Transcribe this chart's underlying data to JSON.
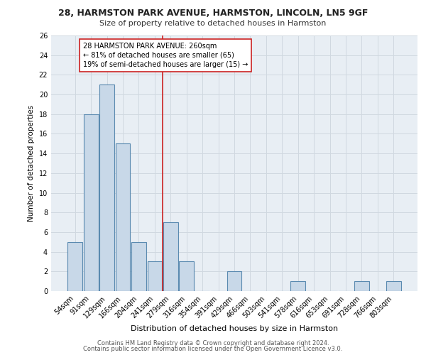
{
  "title1": "28, HARMSTON PARK AVENUE, HARMSTON, LINCOLN, LN5 9GF",
  "title2": "Size of property relative to detached houses in Harmston",
  "xlabel": "Distribution of detached houses by size in Harmston",
  "ylabel": "Number of detached properties",
  "categories": [
    "54sqm",
    "91sqm",
    "129sqm",
    "166sqm",
    "204sqm",
    "241sqm",
    "279sqm",
    "316sqm",
    "354sqm",
    "391sqm",
    "429sqm",
    "466sqm",
    "503sqm",
    "541sqm",
    "578sqm",
    "616sqm",
    "653sqm",
    "691sqm",
    "728sqm",
    "766sqm",
    "803sqm"
  ],
  "values": [
    5,
    18,
    21,
    15,
    5,
    3,
    7,
    3,
    0,
    0,
    2,
    0,
    0,
    0,
    1,
    0,
    0,
    0,
    1,
    0,
    1
  ],
  "bar_color": "#c8d8e8",
  "bar_edge_color": "#5a8ab0",
  "grid_color": "#d0d8e0",
  "background_color": "#e8eef4",
  "vline_x": 5.5,
  "vline_color": "#cc2222",
  "annotation_line1": "28 HARMSTON PARK AVENUE: 260sqm",
  "annotation_line2": "← 81% of detached houses are smaller (65)",
  "annotation_line3": "19% of semi-detached houses are larger (15) →",
  "ylim": [
    0,
    26
  ],
  "yticks": [
    0,
    2,
    4,
    6,
    8,
    10,
    12,
    14,
    16,
    18,
    20,
    22,
    24,
    26
  ],
  "footer1": "Contains HM Land Registry data © Crown copyright and database right 2024.",
  "footer2": "Contains public sector information licensed under the Open Government Licence v3.0."
}
